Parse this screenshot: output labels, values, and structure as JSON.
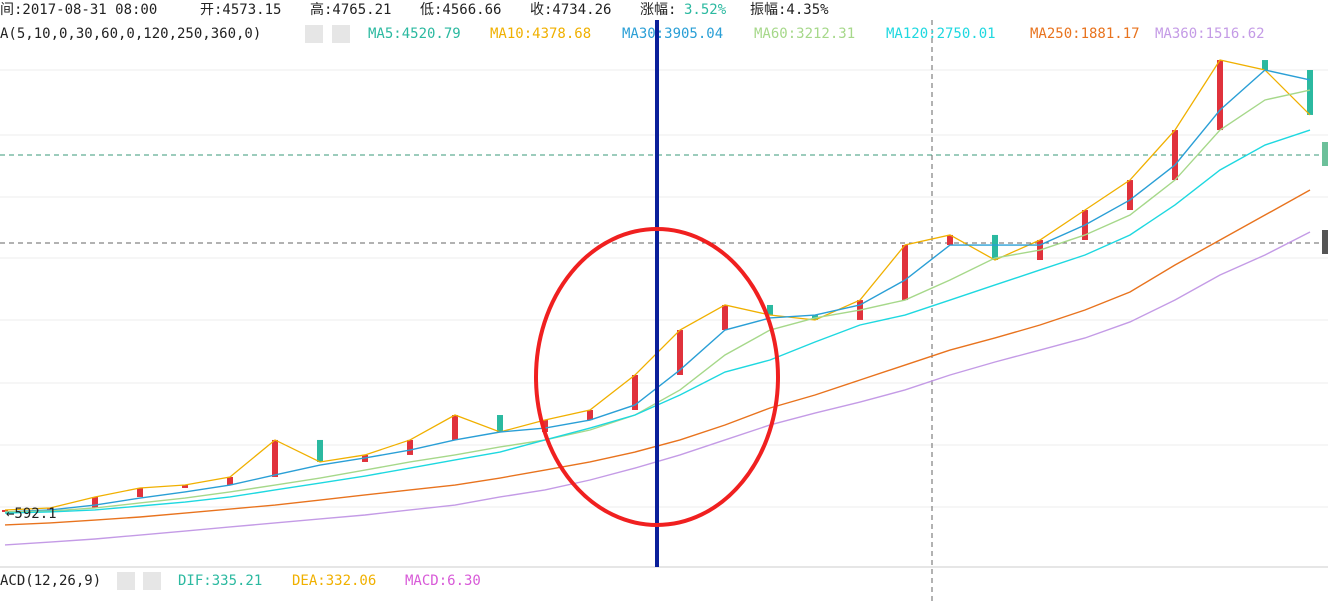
{
  "header": {
    "time": "间:2017-08-31 08:00",
    "open": "开:4573.15",
    "high": "高:4765.21",
    "low": "低:4566.66",
    "close": "收:4734.26",
    "change_label": "涨幅:",
    "change_value": "3.52%",
    "amplitude": "振幅:4.35%"
  },
  "ma_indicator": "A(5,10,0,30,60,0,120,250,360,0)",
  "ma_legend": [
    {
      "text": "MA5:4520.79",
      "color": "#2bb9a0"
    },
    {
      "text": "MA10:4378.68",
      "color": "#f0b000"
    },
    {
      "text": "MA30:3905.04",
      "color": "#2a9fd6"
    },
    {
      "text": "MA60:3212.31",
      "color": "#a6d88a"
    },
    {
      "text": "MA120:2750.01",
      "color": "#1ed8e0"
    },
    {
      "text": "MA250:1881.17",
      "color": "#e8731e"
    },
    {
      "text": "MA360:1516.62",
      "color": "#c49be6"
    }
  ],
  "macd_indicator": "ACD(12,26,9)",
  "macd_legend": [
    {
      "text": "DIF:335.21",
      "color": "#2bb9a0"
    },
    {
      "text": "DEA:332.06",
      "color": "#f0b000"
    },
    {
      "text": "MACD:6.30",
      "color": "#d85ad8"
    }
  ],
  "min_label": "←592.1",
  "chart_data": {
    "type": "line",
    "ylim": [
      0,
      5200
    ],
    "close": [
      525,
      544,
      649,
      735,
      763,
      840,
      1193,
      983,
      1050,
      1193,
      1431,
      1269,
      1383,
      1479,
      1813,
      2242,
      2481,
      2385,
      2338,
      2528,
      3053,
      3149,
      2910,
      3101,
      3387,
      3673,
      4150,
      4818,
      4723,
      4294
    ],
    "up_color": "#e0323c",
    "down_color": "#2bb9a0",
    "series": [
      {
        "color": "#2a9fd6",
        "values": [
          506,
          525,
          572,
          639,
          697,
          763,
          859,
          954,
          1021,
          1097,
          1193,
          1269,
          1307,
          1383,
          1527,
          1861,
          2242,
          2357,
          2385,
          2481,
          2719,
          3053,
          3053,
          3053,
          3244,
          3483,
          3817,
          4341,
          4723,
          4628
        ]
      },
      {
        "color": "#a6d88a",
        "values": [
          506,
          515,
          544,
          592,
          639,
          697,
          763,
          830,
          906,
          983,
          1050,
          1126,
          1193,
          1288,
          1431,
          1670,
          2004,
          2242,
          2357,
          2433,
          2528,
          2719,
          2929,
          3005,
          3149,
          3339,
          3673,
          4150,
          4437,
          4532
        ]
      },
      {
        "color": "#1ed8e0",
        "values": [
          496,
          506,
          525,
          563,
          601,
          649,
          716,
          782,
          849,
          925,
          1002,
          1078,
          1193,
          1307,
          1431,
          1622,
          1841,
          1956,
          2128,
          2290,
          2385,
          2528,
          2672,
          2815,
          2958,
          3149,
          3435,
          3769,
          4007,
          4150
        ]
      },
      {
        "color": "#e8731e",
        "values": [
          382,
          401,
          429,
          458,
          496,
          534,
          572,
          620,
          668,
          716,
          763,
          830,
          906,
          983,
          1078,
          1193,
          1336,
          1498,
          1622,
          1765,
          1908,
          2051,
          2166,
          2290,
          2433,
          2605,
          2862,
          3101,
          3339,
          3578
        ]
      },
      {
        "color": "#c49be6",
        "values": [
          191,
          219,
          248,
          286,
          324,
          363,
          401,
          439,
          477,
          525,
          572,
          649,
          716,
          811,
          925,
          1050,
          1193,
          1336,
          1450,
          1555,
          1670,
          1813,
          1937,
          2051,
          2166,
          2319,
          2528,
          2767,
          2958,
          3177
        ]
      }
    ]
  }
}
